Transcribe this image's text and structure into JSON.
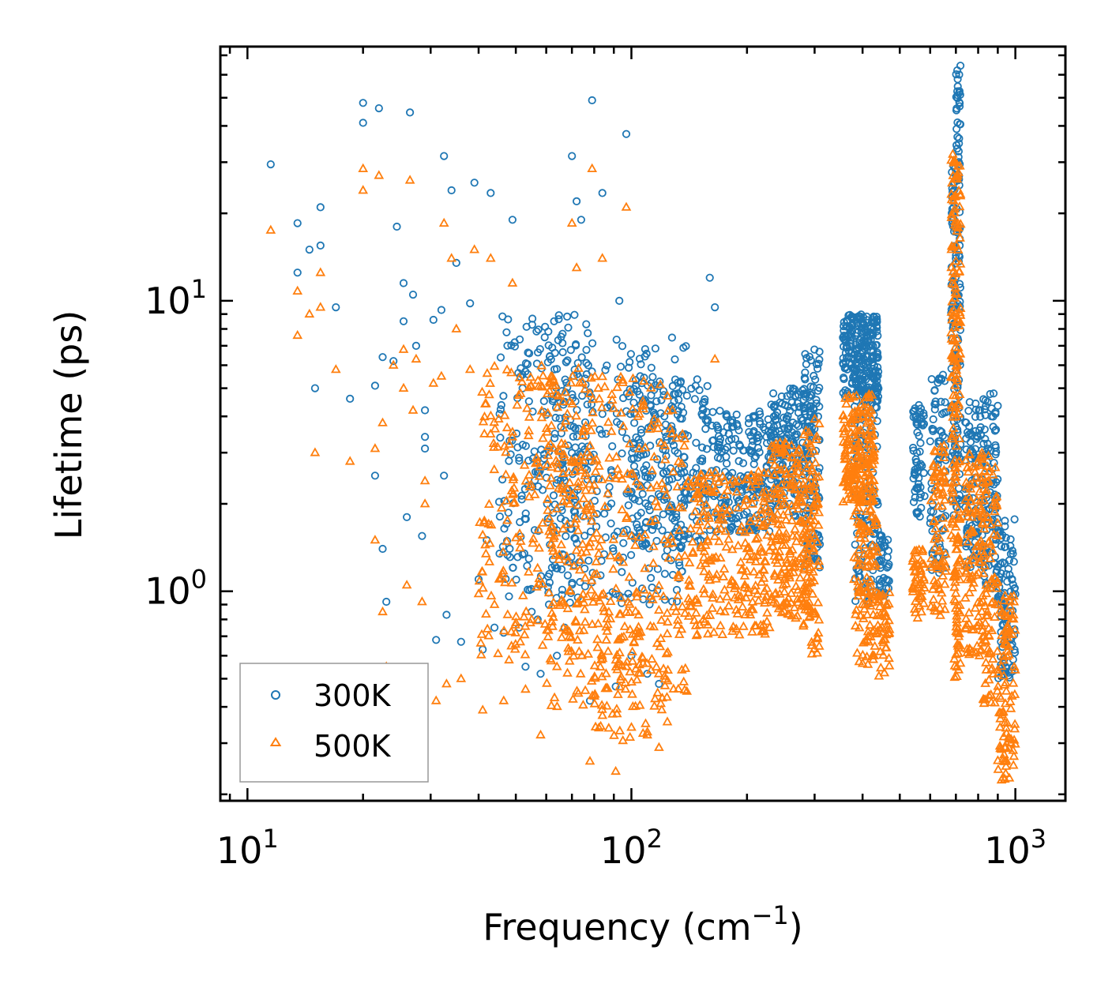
{
  "chart_data": {
    "type": "scatter",
    "title": "",
    "xlabel": "Frequency (cm",
    "xlabel_sup": "−1",
    "xlabel_suffix": ")",
    "ylabel": "Lifetime (ps)",
    "xscale": "log",
    "yscale": "log",
    "xlim": [
      8.5,
      1350
    ],
    "ylim": [
      0.19,
      75
    ],
    "x_ticks": [
      {
        "value": 10,
        "base": "10",
        "exp": "1"
      },
      {
        "value": 100,
        "base": "10",
        "exp": "2"
      },
      {
        "value": 1000,
        "base": "10",
        "exp": "3"
      }
    ],
    "y_ticks": [
      {
        "value": 1,
        "base": "10",
        "exp": "0"
      },
      {
        "value": 10,
        "base": "10",
        "exp": "1"
      }
    ],
    "grid": false,
    "legend_position": "bottom-left",
    "series": [
      {
        "name": "300K",
        "marker": "circle",
        "color": "#1f77b4",
        "points": [
          [
            11.5,
            29.5
          ],
          [
            13.5,
            18.5
          ],
          [
            13.5,
            12.5
          ],
          [
            14.5,
            15
          ],
          [
            15,
            5
          ],
          [
            15.5,
            21
          ],
          [
            15.5,
            15.5
          ],
          [
            17,
            9.5
          ],
          [
            18.5,
            4.6
          ],
          [
            20,
            41
          ],
          [
            20,
            48
          ],
          [
            21.5,
            5.1
          ],
          [
            21.5,
            2.5
          ],
          [
            22,
            46
          ],
          [
            22.5,
            6.4
          ],
          [
            22.5,
            1.4
          ],
          [
            23,
            0.92
          ],
          [
            24,
            6.2
          ],
          [
            24.5,
            18
          ],
          [
            25.5,
            11.5
          ],
          [
            25.5,
            8.5
          ],
          [
            26,
            1.8
          ],
          [
            26.5,
            44.5
          ],
          [
            27,
            10.5
          ],
          [
            27.5,
            7
          ],
          [
            28.5,
            1.55
          ],
          [
            29,
            4.2
          ],
          [
            29,
            3.4
          ],
          [
            29,
            3.1
          ],
          [
            30.5,
            8.6
          ],
          [
            31,
            0.68
          ],
          [
            32,
            9.3
          ],
          [
            32.5,
            31.5
          ],
          [
            32.5,
            2.5
          ],
          [
            33,
            0.83
          ],
          [
            34,
            24
          ],
          [
            35,
            13.5
          ],
          [
            36,
            0.67
          ],
          [
            38,
            9.8
          ],
          [
            39,
            25.5
          ],
          [
            40,
            1.1
          ],
          [
            41,
            0.63
          ],
          [
            42,
            1.5
          ],
          [
            43,
            23.5
          ],
          [
            44,
            0.75
          ],
          [
            46.5,
            0.72
          ],
          [
            48,
            0.96
          ],
          [
            49,
            19
          ],
          [
            51,
            0.75
          ],
          [
            53,
            0.55
          ],
          [
            55,
            0.85
          ],
          [
            57,
            0.8
          ],
          [
            58,
            0.52
          ],
          [
            61,
            0.9
          ],
          [
            64,
            0.6
          ],
          [
            67,
            0.75
          ],
          [
            70,
            31.5
          ],
          [
            72,
            22
          ],
          [
            74,
            19
          ],
          [
            78,
            0.42
          ],
          [
            79,
            49
          ],
          [
            84,
            23.5
          ],
          [
            91,
            0.47
          ],
          [
            93,
            10
          ],
          [
            97,
            37.5
          ],
          [
            100,
            0.6
          ],
          [
            110,
            0.52
          ],
          [
            118,
            0.48
          ],
          [
            160,
            12
          ],
          [
            165,
            9.5
          ]
        ],
        "bands": [
          {
            "x": [
              45,
              80
            ],
            "y": [
              1.0,
              9.0
            ],
            "n": 220
          },
          {
            "x": [
              60,
              140
            ],
            "y": [
              0.9,
              7.5
            ],
            "n": 260
          },
          {
            "x": [
              100,
              160
            ],
            "y": [
              1.4,
              5.5
            ],
            "n": 200
          },
          {
            "x": [
              160,
              230
            ],
            "y": [
              1.6,
              4.2
            ],
            "n": 200
          },
          {
            "x": [
              230,
              300
            ],
            "y": [
              1.8,
              5.0
            ],
            "n": 200
          },
          {
            "x": [
              280,
              310
            ],
            "y": [
              1.2,
              6.8
            ],
            "n": 90
          },
          {
            "x": [
              355,
              440
            ],
            "y": [
              4.5,
              9.0
            ],
            "n": 260
          },
          {
            "x": [
              380,
              440
            ],
            "y": [
              0.9,
              5.0
            ],
            "n": 120
          },
          {
            "x": [
              440,
              470
            ],
            "y": [
              0.9,
              1.6
            ],
            "n": 40
          },
          {
            "x": [
              540,
              580
            ],
            "y": [
              1.8,
              4.4
            ],
            "n": 60
          },
          {
            "x": [
              600,
              660
            ],
            "y": [
              1.1,
              5.6
            ],
            "n": 80
          },
          {
            "x": [
              680,
              720
            ],
            "y": [
              1.8,
              30
            ],
            "n": 140
          },
          {
            "x": [
              700,
              720
            ],
            "y": [
              30,
              68
            ],
            "n": 30
          },
          {
            "x": [
              740,
              820
            ],
            "y": [
              1.2,
              4.5
            ],
            "n": 100
          },
          {
            "x": [
              820,
              900
            ],
            "y": [
              1.0,
              4.8
            ],
            "n": 100
          },
          {
            "x": [
              900,
              1000
            ],
            "y": [
              0.5,
              1.8
            ],
            "n": 100
          }
        ]
      },
      {
        "name": "500K",
        "marker": "triangle",
        "color": "#ff7f0e",
        "points": [
          [
            11.5,
            17.5
          ],
          [
            13.5,
            10.8
          ],
          [
            13.5,
            7.6
          ],
          [
            14.5,
            9
          ],
          [
            15,
            3
          ],
          [
            15.5,
            9.5
          ],
          [
            15.5,
            12.5
          ],
          [
            17,
            5.8
          ],
          [
            18.5,
            2.8
          ],
          [
            20,
            24
          ],
          [
            20,
            28.5
          ],
          [
            21.5,
            1.5
          ],
          [
            21.5,
            3.1
          ],
          [
            22,
            27
          ],
          [
            22.5,
            0.85
          ],
          [
            22.5,
            3.8
          ],
          [
            23,
            0.55
          ],
          [
            24,
            6
          ],
          [
            25.5,
            6.8
          ],
          [
            25.5,
            5
          ],
          [
            26,
            1.05
          ],
          [
            26.5,
            26
          ],
          [
            27,
            4.2
          ],
          [
            27.5,
            6.3
          ],
          [
            28.5,
            0.92
          ],
          [
            29,
            2.4
          ],
          [
            29,
            2.0
          ],
          [
            30.5,
            5.2
          ],
          [
            31,
            0.42
          ],
          [
            32,
            5.5
          ],
          [
            32.5,
            18.5
          ],
          [
            33,
            0.48
          ],
          [
            34,
            14
          ],
          [
            35,
            8
          ],
          [
            36,
            0.5
          ],
          [
            38,
            5.8
          ],
          [
            39,
            15
          ],
          [
            40,
            0.98
          ],
          [
            41,
            0.39
          ],
          [
            43,
            14
          ],
          [
            44,
            0.9
          ],
          [
            46.5,
            0.42
          ],
          [
            48,
            0.58
          ],
          [
            49,
            11.5
          ],
          [
            53,
            0.46
          ],
          [
            55,
            0.8
          ],
          [
            58,
            0.32
          ],
          [
            64,
            0.55
          ],
          [
            70,
            18.5
          ],
          [
            72,
            13
          ],
          [
            78,
            0.26
          ],
          [
            79,
            28.5
          ],
          [
            84,
            14
          ],
          [
            91,
            0.24
          ],
          [
            97,
            21
          ],
          [
            100,
            0.34
          ],
          [
            110,
            0.32
          ],
          [
            118,
            0.29
          ],
          [
            165,
            6.3
          ]
        ],
        "bands": [
          {
            "x": [
              40,
              80
            ],
            "y": [
              0.6,
              6.0
            ],
            "n": 240
          },
          {
            "x": [
              60,
              140
            ],
            "y": [
              0.4,
              5.5
            ],
            "n": 320
          },
          {
            "x": [
              80,
              125
            ],
            "y": [
              0.3,
              1.0
            ],
            "n": 80
          },
          {
            "x": [
              140,
              230
            ],
            "y": [
              0.7,
              2.6
            ],
            "n": 250
          },
          {
            "x": [
              230,
              300
            ],
            "y": [
              0.8,
              3.3
            ],
            "n": 220
          },
          {
            "x": [
              280,
              310
            ],
            "y": [
              0.6,
              4.0
            ],
            "n": 80
          },
          {
            "x": [
              355,
              430
            ],
            "y": [
              2.0,
              4.8
            ],
            "n": 200
          },
          {
            "x": [
              380,
              440
            ],
            "y": [
              0.55,
              2.2
            ],
            "n": 120
          },
          {
            "x": [
              440,
              470
            ],
            "y": [
              0.5,
              1.0
            ],
            "n": 40
          },
          {
            "x": [
              540,
              580
            ],
            "y": [
              0.8,
              1.4
            ],
            "n": 50
          },
          {
            "x": [
              600,
              660
            ],
            "y": [
              0.8,
              3.2
            ],
            "n": 80
          },
          {
            "x": [
              680,
              720
            ],
            "y": [
              1.5,
              32
            ],
            "n": 150
          },
          {
            "x": [
              690,
              720
            ],
            "y": [
              0.5,
              1.5
            ],
            "n": 50
          },
          {
            "x": [
              740,
              820
            ],
            "y": [
              0.6,
              3.0
            ],
            "n": 100
          },
          {
            "x": [
              820,
              900
            ],
            "y": [
              0.4,
              3.0
            ],
            "n": 100
          },
          {
            "x": [
              900,
              1000
            ],
            "y": [
              0.22,
              1.0
            ],
            "n": 100
          }
        ]
      }
    ]
  }
}
